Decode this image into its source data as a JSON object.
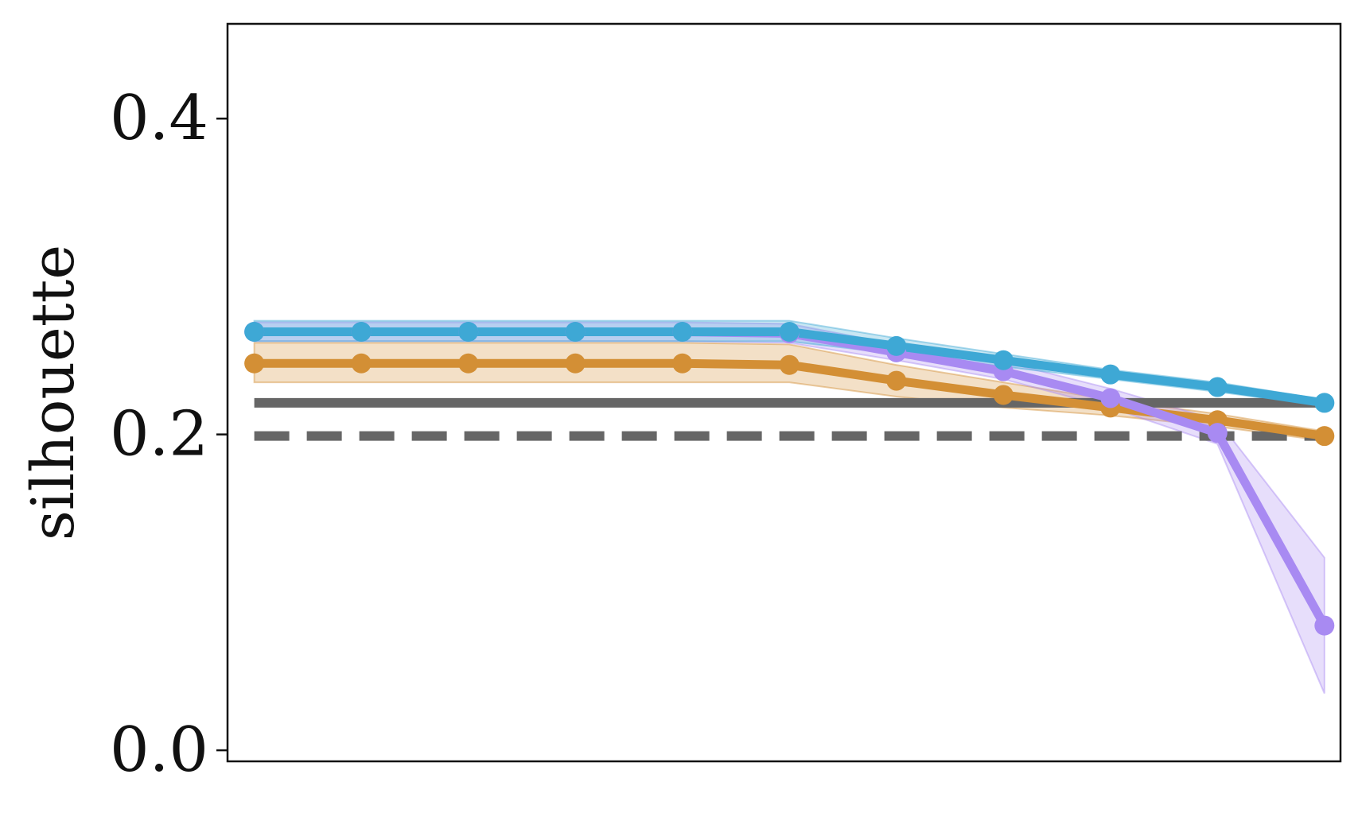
{
  "chart_data": {
    "type": "line",
    "title": "",
    "xlabel": "",
    "ylabel": "silhouette",
    "ylim": [
      -0.007,
      0.46
    ],
    "xlim": [
      -0.25,
      10.15
    ],
    "y_ticks": [
      {
        "value": 0.0,
        "label": "0.0"
      },
      {
        "value": 0.2,
        "label": "0.2"
      },
      {
        "value": 0.4,
        "label": "0.4"
      }
    ],
    "x": [
      0,
      1,
      2,
      3,
      4,
      5,
      6,
      7,
      8,
      9,
      10
    ],
    "grid": false,
    "legend": "none",
    "reference_lines": [
      {
        "value": 0.22,
        "style": "solid",
        "color": "#666666"
      },
      {
        "value": 0.199,
        "style": "dashed",
        "color": "#666666"
      }
    ],
    "series": [
      {
        "color": "#d38f35",
        "values": [
          0.245,
          0.245,
          0.245,
          0.245,
          0.245,
          0.244,
          0.234,
          0.225,
          0.217,
          0.209,
          0.199
        ],
        "band_lower": [
          0.233,
          0.233,
          0.233,
          0.233,
          0.233,
          0.233,
          0.224,
          0.217,
          0.212,
          0.205,
          0.196
        ],
        "band_upper": [
          0.258,
          0.258,
          0.258,
          0.258,
          0.258,
          0.257,
          0.244,
          0.233,
          0.222,
          0.213,
          0.202
        ]
      },
      {
        "color": "#a88af2",
        "values": [
          0.265,
          0.265,
          0.265,
          0.265,
          0.265,
          0.264,
          0.252,
          0.24,
          0.223,
          0.201,
          0.079
        ],
        "band_lower": [
          0.259,
          0.259,
          0.259,
          0.259,
          0.259,
          0.258,
          0.247,
          0.235,
          0.217,
          0.194,
          0.036
        ],
        "band_upper": [
          0.271,
          0.271,
          0.271,
          0.271,
          0.271,
          0.27,
          0.257,
          0.246,
          0.229,
          0.209,
          0.122
        ]
      },
      {
        "color": "#3ea8d5",
        "values": [
          0.265,
          0.265,
          0.265,
          0.265,
          0.265,
          0.265,
          0.256,
          0.247,
          0.238,
          0.23,
          0.22
        ],
        "band_lower": [
          0.259,
          0.259,
          0.259,
          0.259,
          0.259,
          0.259,
          0.251,
          0.243,
          0.235,
          0.227,
          0.218
        ],
        "band_upper": [
          0.272,
          0.272,
          0.272,
          0.272,
          0.272,
          0.272,
          0.261,
          0.251,
          0.241,
          0.233,
          0.222
        ]
      }
    ]
  }
}
